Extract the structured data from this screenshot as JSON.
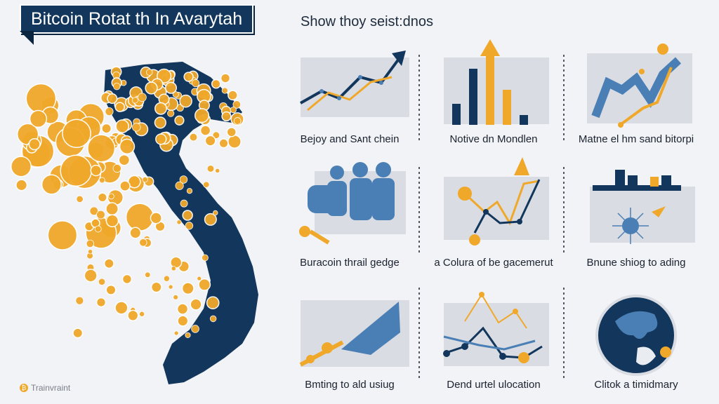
{
  "header": {
    "title": "Bitcoin Rotat th In Avarytah",
    "subtitle": "Show thoy seist:dnos"
  },
  "footer": {
    "logo_text": "Trainvraint",
    "logo_mark": "₿"
  },
  "panels": [
    {
      "caption": "Bejoy and Sᴀnt chein"
    },
    {
      "caption": "Notive dn Mondlen"
    },
    {
      "caption": "Matne el hm sand bitorpi"
    },
    {
      "caption": "Buracoin thrail gedge"
    },
    {
      "caption": "a Colura of be gacemerut"
    },
    {
      "caption": "Bnune shiog to ading"
    },
    {
      "caption": "Bmting to ald usiug"
    },
    {
      "caption": "Dend urtel ulocation"
    },
    {
      "caption": "Clitok a timidmary"
    }
  ],
  "colors": {
    "navy": "#12365c",
    "gold": "#f0a82a",
    "steel_blue": "#4a7fb5",
    "background": "#f1f3f6"
  }
}
